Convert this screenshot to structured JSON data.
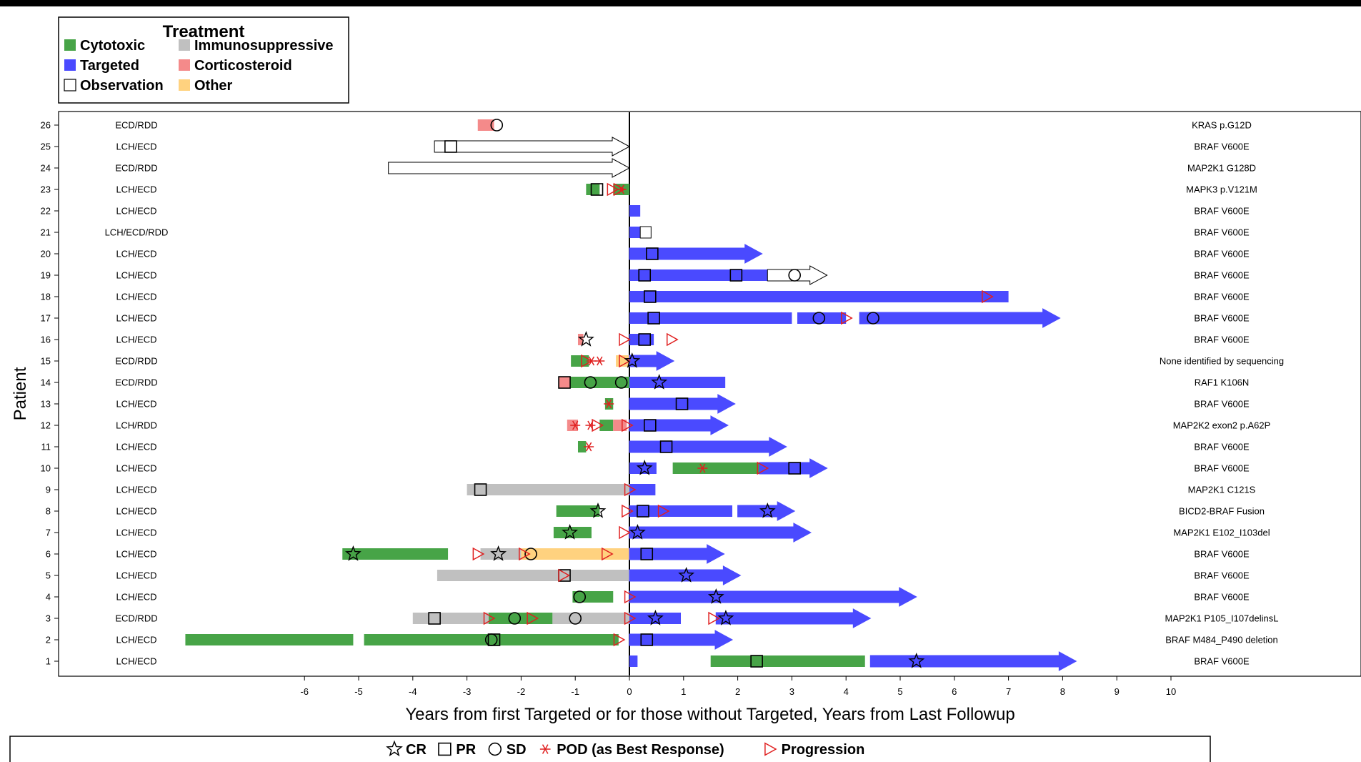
{
  "chart_data": {
    "type": "swimmer",
    "xlabel": "Years from first Targeted or for those without Targeted, Years from Last Followup",
    "ylabel": "Patient",
    "xlim": [
      -8.2,
      13.8
    ],
    "xticks": [
      -6,
      -5,
      -4,
      -3,
      -2,
      -1,
      0,
      1,
      2,
      3,
      4,
      5,
      6,
      7,
      8,
      9,
      10
    ],
    "colors": {
      "Cytotoxic": "#47a447",
      "Immunosuppressive": "#c0c0c0",
      "Targeted": "#4a4aff",
      "Corticosteroid": "#f48a8a",
      "Observation": "#ffffff",
      "Other": "#ffd27f",
      "marker": "#000000",
      "progression": "#e02020"
    },
    "treatment_legend": {
      "title": "Treatment",
      "items": [
        {
          "name": "Cytotoxic",
          "color": "#47a447"
        },
        {
          "name": "Immunosuppressive",
          "color": "#c0c0c0"
        },
        {
          "name": "Targeted",
          "color": "#4a4aff"
        },
        {
          "name": "Corticosteroid",
          "color": "#f48a8a"
        },
        {
          "name": "Observation",
          "color": "#ffffff"
        },
        {
          "name": "Other",
          "color": "#ffd27f"
        }
      ]
    },
    "response_legend": [
      {
        "label": "CR",
        "symbol": "star"
      },
      {
        "label": "PR",
        "symbol": "square"
      },
      {
        "label": "SD",
        "symbol": "circle"
      },
      {
        "label": "POD (as Best Response)",
        "symbol": "asterisk"
      },
      {
        "label": "Progression",
        "symbol": "triangle"
      }
    ],
    "patients": [
      {
        "id": 26,
        "diagnosis": "ECD/RDD",
        "mutation": "KRAS p.G12D",
        "bars": [
          {
            "type": "Corticosteroid",
            "start": -2.8,
            "end": -2.5
          }
        ],
        "markers": [
          {
            "symbol": "circle",
            "x": -2.45
          }
        ]
      },
      {
        "id": 25,
        "diagnosis": "LCH/ECD",
        "mutation": "BRAF V600E",
        "bars": [
          {
            "type": "Observation",
            "start": -3.6,
            "end": 0,
            "arrow": true
          }
        ],
        "markers": [
          {
            "symbol": "square",
            "x": -3.3
          }
        ]
      },
      {
        "id": 24,
        "diagnosis": "ECD/RDD",
        "mutation": "MAP2K1 G128D",
        "bars": [
          {
            "type": "Observation",
            "start": -4.45,
            "end": 0,
            "arrow": true
          }
        ],
        "markers": []
      },
      {
        "id": 23,
        "diagnosis": "LCH/ECD",
        "mutation": "MAPK3 p.V121M",
        "bars": [
          {
            "type": "Cytotoxic",
            "start": -0.8,
            "end": -0.55
          },
          {
            "type": "Cytotoxic",
            "start": -0.3,
            "end": 0
          }
        ],
        "markers": [
          {
            "symbol": "square",
            "x": -0.6
          },
          {
            "symbol": "triangle",
            "x": -0.32
          },
          {
            "symbol": "triangle",
            "x": -0.2
          },
          {
            "symbol": "asterisk",
            "x": -0.15
          }
        ]
      },
      {
        "id": 22,
        "diagnosis": "LCH/ECD",
        "mutation": "BRAF V600E",
        "bars": [
          {
            "type": "Targeted",
            "start": 0,
            "end": 0.2
          }
        ],
        "markers": []
      },
      {
        "id": 21,
        "diagnosis": "LCH/ECD/RDD",
        "mutation": "BRAF V600E",
        "bars": [
          {
            "type": "Targeted",
            "start": 0,
            "end": 0.3
          },
          {
            "type": "Observation",
            "start": 0.2,
            "end": 0.4
          }
        ],
        "markers": []
      },
      {
        "id": 20,
        "diagnosis": "LCH/ECD",
        "mutation": "BRAF V600E",
        "bars": [
          {
            "type": "Targeted",
            "start": 0,
            "end": 2.45,
            "arrow": true
          }
        ],
        "markers": [
          {
            "symbol": "square",
            "x": 0.42
          }
        ]
      },
      {
        "id": 19,
        "diagnosis": "LCH/ECD",
        "mutation": "BRAF V600E",
        "bars": [
          {
            "type": "Targeted",
            "start": 0,
            "end": 2.55
          },
          {
            "type": "Observation",
            "start": 2.55,
            "end": 3.65,
            "arrow": true
          }
        ],
        "markers": [
          {
            "symbol": "square",
            "x": 0.28
          },
          {
            "symbol": "square",
            "x": 1.97
          },
          {
            "symbol": "circle",
            "x": 3.05
          }
        ]
      },
      {
        "id": 18,
        "diagnosis": "LCH/ECD",
        "mutation": "BRAF V600E",
        "bars": [
          {
            "type": "Targeted",
            "start": 0,
            "end": 7.0
          }
        ],
        "markers": [
          {
            "symbol": "square",
            "x": 0.38
          },
          {
            "symbol": "triangle",
            "x": 6.6
          }
        ]
      },
      {
        "id": 17,
        "diagnosis": "LCH/ECD",
        "mutation": "BRAF V600E",
        "bars": [
          {
            "type": "Targeted",
            "start": 0,
            "end": 3.0
          },
          {
            "type": "Targeted",
            "start": 3.1,
            "end": 4.0
          },
          {
            "type": "Targeted",
            "start": 4.25,
            "end": 7.95,
            "arrow": true
          }
        ],
        "markers": [
          {
            "symbol": "square",
            "x": 0.45
          },
          {
            "symbol": "circle",
            "x": 3.5
          },
          {
            "symbol": "triangle",
            "x": 4.0
          },
          {
            "symbol": "circle",
            "x": 4.5
          }
        ]
      },
      {
        "id": 16,
        "diagnosis": "LCH/ECD",
        "mutation": "BRAF V600E",
        "bars": [
          {
            "type": "Corticosteroid",
            "start": -0.95,
            "end": -0.85
          },
          {
            "type": "Targeted",
            "start": 0,
            "end": 0.45
          }
        ],
        "markers": [
          {
            "symbol": "star",
            "x": -0.8
          },
          {
            "symbol": "triangle",
            "x": -0.1
          },
          {
            "symbol": "square",
            "x": 0.28
          },
          {
            "symbol": "triangle",
            "x": 0.78
          }
        ]
      },
      {
        "id": 15,
        "diagnosis": "ECD/RDD",
        "mutation": "None identified by sequencing",
        "bars": [
          {
            "type": "Cytotoxic",
            "start": -1.08,
            "end": -0.75
          },
          {
            "type": "Other",
            "start": -0.25,
            "end": 0
          },
          {
            "type": "Targeted",
            "start": 0,
            "end": 0.82,
            "arrow": true
          }
        ],
        "markers": [
          {
            "symbol": "triangle",
            "x": -0.8
          },
          {
            "symbol": "asterisk",
            "x": -0.7
          },
          {
            "symbol": "asterisk",
            "x": -0.55
          },
          {
            "symbol": "triangle",
            "x": -0.1
          },
          {
            "symbol": "star",
            "x": 0.05
          }
        ]
      },
      {
        "id": 14,
        "diagnosis": "ECD/RDD",
        "mutation": "RAF1 K106N",
        "bars": [
          {
            "type": "Corticosteroid",
            "start": -1.3,
            "end": -1.1
          },
          {
            "type": "Cytotoxic",
            "start": -1.1,
            "end": 0
          },
          {
            "type": "Targeted",
            "start": 0,
            "end": 1.77
          }
        ],
        "markers": [
          {
            "symbol": "square",
            "x": -1.2
          },
          {
            "symbol": "circle",
            "x": -0.72
          },
          {
            "symbol": "circle",
            "x": -0.15
          },
          {
            "symbol": "star",
            "x": 0.55
          }
        ]
      },
      {
        "id": 13,
        "diagnosis": "LCH/ECD",
        "mutation": "BRAF V600E",
        "bars": [
          {
            "type": "Cytotoxic",
            "start": -0.45,
            "end": -0.3
          },
          {
            "type": "Targeted",
            "start": 0,
            "end": 1.95,
            "arrow": true
          }
        ],
        "markers": [
          {
            "symbol": "asterisk",
            "x": -0.38
          },
          {
            "symbol": "square",
            "x": 0.97
          }
        ]
      },
      {
        "id": 12,
        "diagnosis": "LCH/RDD",
        "mutation": "MAP2K2 exon2 p.A62P",
        "bars": [
          {
            "type": "Corticosteroid",
            "start": -1.15,
            "end": -0.95
          },
          {
            "type": "Cytotoxic",
            "start": -0.55,
            "end": -0.3
          },
          {
            "type": "Corticosteroid",
            "start": -0.3,
            "end": -0.05
          },
          {
            "type": "Targeted",
            "start": 0,
            "end": 1.82,
            "arrow": true
          }
        ],
        "markers": [
          {
            "symbol": "asterisk",
            "x": -1.0
          },
          {
            "symbol": "asterisk",
            "x": -0.72
          },
          {
            "symbol": "triangle",
            "x": -0.6
          },
          {
            "symbol": "triangle",
            "x": -0.05
          },
          {
            "symbol": "square",
            "x": 0.38
          }
        ]
      },
      {
        "id": 11,
        "diagnosis": "LCH/ECD",
        "mutation": "BRAF V600E",
        "bars": [
          {
            "type": "Cytotoxic",
            "start": -0.95,
            "end": -0.8
          },
          {
            "type": "Targeted",
            "start": 0,
            "end": 2.9,
            "arrow": true
          }
        ],
        "markers": [
          {
            "symbol": "asterisk",
            "x": -0.75
          },
          {
            "symbol": "square",
            "x": 0.68
          }
        ]
      },
      {
        "id": 10,
        "diagnosis": "LCH/ECD",
        "mutation": "BRAF V600E",
        "bars": [
          {
            "type": "Targeted",
            "start": 0,
            "end": 0.5
          },
          {
            "type": "Cytotoxic",
            "start": 0.8,
            "end": 2.5
          },
          {
            "type": "Targeted",
            "start": 2.4,
            "end": 3.65,
            "arrow": true
          }
        ],
        "markers": [
          {
            "symbol": "star",
            "x": 0.28
          },
          {
            "symbol": "asterisk",
            "x": 1.35
          },
          {
            "symbol": "triangle",
            "x": 2.45
          },
          {
            "symbol": "square",
            "x": 3.05
          }
        ]
      },
      {
        "id": 9,
        "diagnosis": "LCH/ECD",
        "mutation": "MAP2K1 C121S",
        "bars": [
          {
            "type": "Immunosuppressive",
            "start": -3.0,
            "end": 0
          },
          {
            "type": "Targeted",
            "start": 0,
            "end": 0.48
          }
        ],
        "markers": [
          {
            "symbol": "square",
            "x": -2.75
          },
          {
            "symbol": "triangle",
            "x": 0.0
          }
        ]
      },
      {
        "id": 8,
        "diagnosis": "LCH/ECD",
        "mutation": "BICD2-BRAF Fusion",
        "bars": [
          {
            "type": "Cytotoxic",
            "start": -1.35,
            "end": -0.55
          },
          {
            "type": "Targeted",
            "start": 0,
            "end": 1.9
          },
          {
            "type": "Targeted",
            "start": 2.0,
            "end": 3.05,
            "arrow": true
          }
        ],
        "markers": [
          {
            "symbol": "star",
            "x": -0.58
          },
          {
            "symbol": "triangle",
            "x": -0.05
          },
          {
            "symbol": "square",
            "x": 0.25
          },
          {
            "symbol": "triangle",
            "x": 0.62
          },
          {
            "symbol": "star",
            "x": 2.55
          }
        ]
      },
      {
        "id": 7,
        "diagnosis": "LCH/ECD",
        "mutation": "MAP2K1 E102_I103del",
        "bars": [
          {
            "type": "Cytotoxic",
            "start": -1.4,
            "end": -0.7
          },
          {
            "type": "Targeted",
            "start": 0,
            "end": 3.35,
            "arrow": true
          }
        ],
        "markers": [
          {
            "symbol": "star",
            "x": -1.1
          },
          {
            "symbol": "triangle",
            "x": -0.1
          },
          {
            "symbol": "star",
            "x": 0.15
          }
        ]
      },
      {
        "id": 6,
        "diagnosis": "LCH/ECD",
        "mutation": "BRAF V600E",
        "bars": [
          {
            "type": "Cytotoxic",
            "start": -5.3,
            "end": -3.35
          },
          {
            "type": "Immunosuppressive",
            "start": -2.75,
            "end": -2.0
          },
          {
            "type": "Other",
            "start": -2.0,
            "end": 0
          },
          {
            "type": "Targeted",
            "start": 0,
            "end": 1.75,
            "arrow": true
          }
        ],
        "markers": [
          {
            "symbol": "star",
            "x": -5.1
          },
          {
            "symbol": "triangle",
            "x": -2.8
          },
          {
            "symbol": "star",
            "x": -2.42
          },
          {
            "symbol": "circle",
            "x": -1.82
          },
          {
            "symbol": "triangle",
            "x": -1.95
          },
          {
            "symbol": "triangle",
            "x": -0.42
          },
          {
            "symbol": "square",
            "x": 0.32
          }
        ]
      },
      {
        "id": 5,
        "diagnosis": "LCH/ECD",
        "mutation": "BRAF V600E",
        "bars": [
          {
            "type": "Immunosuppressive",
            "start": -3.55,
            "end": 0
          },
          {
            "type": "Targeted",
            "start": 0,
            "end": 2.05,
            "arrow": true
          }
        ],
        "markers": [
          {
            "symbol": "square",
            "x": -1.2
          },
          {
            "symbol": "triangle",
            "x": -1.22
          },
          {
            "symbol": "star",
            "x": 1.05
          }
        ]
      },
      {
        "id": 4,
        "diagnosis": "LCH/ECD",
        "mutation": "BRAF V600E",
        "bars": [
          {
            "type": "Cytotoxic",
            "start": -1.05,
            "end": -0.3
          },
          {
            "type": "Targeted",
            "start": 0,
            "end": 5.3,
            "arrow": true
          }
        ],
        "markers": [
          {
            "symbol": "circle",
            "x": -0.92
          },
          {
            "symbol": "triangle",
            "x": 0.0
          },
          {
            "symbol": "star",
            "x": 1.6
          }
        ]
      },
      {
        "id": 3,
        "diagnosis": "ECD/RDD",
        "mutation": "MAP2K1 P105_I107delinsL",
        "bars": [
          {
            "type": "Immunosuppressive",
            "start": -4.0,
            "end": -2.6
          },
          {
            "type": "Cytotoxic",
            "start": -2.6,
            "end": -1.42
          },
          {
            "type": "Immunosuppressive",
            "start": -1.42,
            "end": 0
          },
          {
            "type": "Targeted",
            "start": 0,
            "end": 0.95
          },
          {
            "type": "Targeted",
            "start": 1.6,
            "end": 4.45,
            "arrow": true
          }
        ],
        "markers": [
          {
            "symbol": "square",
            "x": -3.6
          },
          {
            "symbol": "triangle",
            "x": -2.6
          },
          {
            "symbol": "circle",
            "x": -2.12
          },
          {
            "symbol": "triangle",
            "x": -1.8
          },
          {
            "symbol": "circle",
            "x": -1.0
          },
          {
            "symbol": "triangle",
            "x": 0.0
          },
          {
            "symbol": "star",
            "x": 0.48
          },
          {
            "symbol": "triangle",
            "x": 1.55
          },
          {
            "symbol": "star",
            "x": 1.78
          }
        ]
      },
      {
        "id": 2,
        "diagnosis": "LCH/ECD",
        "mutation": "BRAF M484_P490 deletion",
        "bars": [
          {
            "type": "Cytotoxic",
            "start": -8.2,
            "end": -5.1
          },
          {
            "type": "Cytotoxic",
            "start": -4.9,
            "end": -0.2
          },
          {
            "type": "Targeted",
            "start": 0,
            "end": 1.9,
            "arrow": true
          }
        ],
        "markers": [
          {
            "symbol": "circle",
            "x": -2.55
          },
          {
            "symbol": "square",
            "x": -2.5
          },
          {
            "symbol": "triangle",
            "x": -0.2
          },
          {
            "symbol": "square",
            "x": 0.32
          }
        ]
      },
      {
        "id": 1,
        "diagnosis": "LCH/ECD",
        "mutation": "BRAF V600E",
        "bars": [
          {
            "type": "Targeted",
            "start": 0,
            "end": 0.15
          },
          {
            "type": "Cytotoxic",
            "start": 1.5,
            "end": 4.35
          },
          {
            "type": "Targeted",
            "start": 4.45,
            "end": 8.25,
            "arrow": true
          }
        ],
        "markers": [
          {
            "symbol": "square",
            "x": 2.35
          },
          {
            "symbol": "star",
            "x": 5.3
          }
        ]
      }
    ]
  }
}
